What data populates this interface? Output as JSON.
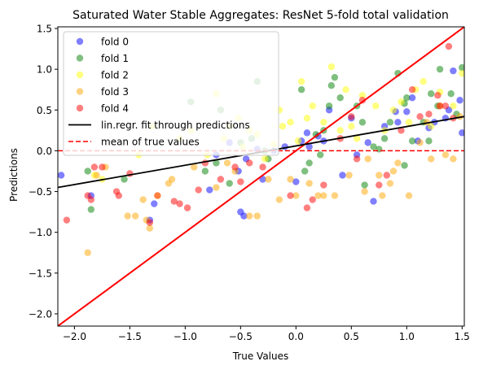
{
  "chart_data": {
    "type": "scatter",
    "title": "Saturated Water Stable Aggregates: ResNet 5-fold total validation",
    "xlabel": "True Values",
    "ylabel": "Predictions",
    "xlim": [
      -2.15,
      1.52
    ],
    "ylim": [
      -2.15,
      1.52
    ],
    "xticks": [
      -2.0,
      -1.5,
      -1.0,
      -0.5,
      0.0,
      0.5,
      1.0,
      1.5
    ],
    "yticks": [
      -2.0,
      -1.5,
      -1.0,
      -0.5,
      0.0,
      0.5,
      1.0,
      1.5
    ],
    "xtick_labels": [
      "−2.0",
      "−1.5",
      "−1.0",
      "−0.5",
      "0.0",
      "0.5",
      "1.0",
      "1.5"
    ],
    "ytick_labels": [
      "−2.0",
      "−1.5",
      "−1.0",
      "−0.5",
      "0.0",
      "0.5",
      "1.0",
      "1.5"
    ],
    "grid": false,
    "legend_position": "top-left",
    "series": [
      {
        "name": "fold 0",
        "color": "#0000ff",
        "points": [
          [
            -2.12,
            -0.3
          ],
          [
            -1.85,
            -0.55
          ],
          [
            -1.32,
            -0.85
          ],
          [
            -0.5,
            -0.75
          ],
          [
            -0.47,
            -0.8
          ],
          [
            -0.72,
            -0.05
          ],
          [
            -0.6,
            0.1
          ],
          [
            -0.52,
            -0.25
          ],
          [
            -0.45,
            -0.1
          ],
          [
            -0.35,
            0.02
          ],
          [
            -0.2,
            0.0
          ],
          [
            -0.1,
            0.05
          ],
          [
            0.0,
            -0.38
          ],
          [
            0.05,
            0.12
          ],
          [
            0.1,
            0.22
          ],
          [
            0.12,
            0.05
          ],
          [
            0.25,
            0.12
          ],
          [
            0.3,
            0.5
          ],
          [
            0.42,
            -0.3
          ],
          [
            0.55,
            -0.05
          ],
          [
            0.65,
            0.1
          ],
          [
            0.7,
            -0.62
          ],
          [
            0.8,
            0.3
          ],
          [
            0.9,
            0.48
          ],
          [
            0.92,
            0.35
          ],
          [
            1.0,
            0.48
          ],
          [
            1.05,
            0.65
          ],
          [
            1.1,
            0.12
          ],
          [
            1.2,
            0.28
          ],
          [
            1.25,
            0.35
          ],
          [
            1.35,
            0.4
          ],
          [
            1.38,
            0.5
          ],
          [
            1.42,
            0.98
          ],
          [
            1.48,
            0.62
          ],
          [
            1.5,
            0.22
          ],
          [
            -1.28,
            -0.65
          ],
          [
            -0.78,
            -0.48
          ],
          [
            -0.3,
            -0.35
          ],
          [
            0.2,
            0.18
          ],
          [
            0.5,
            0.4
          ]
        ]
      },
      {
        "name": "fold 1",
        "color": "#008000",
        "points": [
          [
            -1.88,
            -0.25
          ],
          [
            -1.85,
            -0.72
          ],
          [
            -1.55,
            -0.35
          ],
          [
            -0.95,
            0.6
          ],
          [
            -0.82,
            -0.25
          ],
          [
            -0.72,
            -0.15
          ],
          [
            -0.68,
            0.5
          ],
          [
            -0.6,
            -0.4
          ],
          [
            -0.5,
            0.1
          ],
          [
            -0.4,
            0.15
          ],
          [
            -0.35,
            0.85
          ],
          [
            -0.28,
            0.0
          ],
          [
            -0.25,
            -0.1
          ],
          [
            0.05,
            0.75
          ],
          [
            0.08,
            -0.25
          ],
          [
            0.12,
            -0.15
          ],
          [
            0.18,
            0.2
          ],
          [
            0.22,
            -0.05
          ],
          [
            0.25,
            0.25
          ],
          [
            0.3,
            0.55
          ],
          [
            0.32,
            0.8
          ],
          [
            0.35,
            0.9
          ],
          [
            0.4,
            0.65
          ],
          [
            0.55,
            0.55
          ],
          [
            0.6,
            0.35
          ],
          [
            0.7,
            0.05
          ],
          [
            0.75,
            0.02
          ],
          [
            0.8,
            0.15
          ],
          [
            0.85,
            0.35
          ],
          [
            0.92,
            0.95
          ],
          [
            0.98,
            0.58
          ],
          [
            1.0,
            0.65
          ],
          [
            1.05,
            0.12
          ],
          [
            1.15,
            0.35
          ],
          [
            1.22,
            0.7
          ],
          [
            1.28,
            0.55
          ],
          [
            1.3,
            1.0
          ],
          [
            1.4,
            0.7
          ],
          [
            1.45,
            0.45
          ],
          [
            1.5,
            1.02
          ],
          [
            0.98,
            -0.18
          ],
          [
            1.2,
            0.12
          ],
          [
            0.62,
            -0.42
          ]
        ]
      },
      {
        "name": "fold 2",
        "color": "#ffff00",
        "points": [
          [
            -1.82,
            -0.3
          ],
          [
            -1.75,
            -0.35
          ],
          [
            -1.42,
            -0.05
          ],
          [
            -1.3,
            0.3
          ],
          [
            -1.25,
            -0.55
          ],
          [
            -1.05,
            0.15
          ],
          [
            -0.95,
            0.25
          ],
          [
            -0.8,
            -0.05
          ],
          [
            -0.72,
            0.7
          ],
          [
            -0.6,
            0.3
          ],
          [
            -0.52,
            0.4
          ],
          [
            -0.48,
            0.05
          ],
          [
            -0.42,
            0.25
          ],
          [
            -0.35,
            0.2
          ],
          [
            -0.28,
            -0.1
          ],
          [
            -0.2,
            0.08
          ],
          [
            -0.15,
            0.5
          ],
          [
            -0.12,
            0.3
          ],
          [
            -0.05,
            0.35
          ],
          [
            0.02,
            0.12
          ],
          [
            0.05,
            0.85
          ],
          [
            0.1,
            0.4
          ],
          [
            0.15,
            0.55
          ],
          [
            0.25,
            0.35
          ],
          [
            0.32,
            1.03
          ],
          [
            0.4,
            0.25
          ],
          [
            0.45,
            0.75
          ],
          [
            0.55,
            0.15
          ],
          [
            0.6,
            0.68
          ],
          [
            0.72,
            0.55
          ],
          [
            0.8,
            0.25
          ],
          [
            0.88,
            0.5
          ],
          [
            0.95,
            0.6
          ],
          [
            1.02,
            0.35
          ],
          [
            1.08,
            0.75
          ],
          [
            1.15,
            0.85
          ],
          [
            1.22,
            0.3
          ],
          [
            1.3,
            0.72
          ],
          [
            1.42,
            0.55
          ],
          [
            1.5,
            0.95
          ],
          [
            -0.65,
            0.15
          ],
          [
            0.5,
            0.3
          ]
        ]
      },
      {
        "name": "fold 3",
        "color": "#ffa500",
        "points": [
          [
            -1.88,
            -1.25
          ],
          [
            -1.8,
            -0.3
          ],
          [
            -1.72,
            -0.2
          ],
          [
            -1.52,
            -0.8
          ],
          [
            -1.45,
            -0.8
          ],
          [
            -1.38,
            -0.6
          ],
          [
            -1.35,
            -0.85
          ],
          [
            -1.32,
            -0.95
          ],
          [
            -1.15,
            -0.4
          ],
          [
            -1.12,
            -0.35
          ],
          [
            -0.92,
            -0.2
          ],
          [
            -0.72,
            -0.45
          ],
          [
            -0.62,
            -0.15
          ],
          [
            -0.55,
            -0.25
          ],
          [
            -0.42,
            -0.8
          ],
          [
            -0.35,
            -0.8
          ],
          [
            -0.25,
            -0.35
          ],
          [
            -0.15,
            -0.6
          ],
          [
            -0.05,
            -0.35
          ],
          [
            0.0,
            -0.55
          ],
          [
            0.12,
            -0.4
          ],
          [
            0.2,
            -0.55
          ],
          [
            0.25,
            -0.55
          ],
          [
            0.35,
            -0.55
          ],
          [
            0.48,
            -0.3
          ],
          [
            0.62,
            -0.5
          ],
          [
            0.65,
            -0.1
          ],
          [
            0.75,
            -0.3
          ],
          [
            0.78,
            -0.55
          ],
          [
            0.88,
            -0.25
          ],
          [
            0.92,
            -0.15
          ],
          [
            1.02,
            -0.55
          ],
          [
            1.12,
            0.1
          ],
          [
            1.18,
            0.35
          ],
          [
            1.22,
            -0.1
          ],
          [
            1.3,
            0.55
          ],
          [
            1.35,
            -0.05
          ],
          [
            1.42,
            -0.1
          ],
          [
            1.48,
            0.42
          ],
          [
            0.85,
            -0.4
          ]
        ]
      },
      {
        "name": "fold 4",
        "color": "#ff0000",
        "points": [
          [
            -2.07,
            -0.85
          ],
          [
            -1.88,
            -0.55
          ],
          [
            -1.85,
            -0.6
          ],
          [
            -1.82,
            -0.2
          ],
          [
            -1.75,
            -0.2
          ],
          [
            -1.62,
            -0.5
          ],
          [
            -1.6,
            -0.55
          ],
          [
            -1.5,
            -0.28
          ],
          [
            -1.32,
            -0.88
          ],
          [
            -1.1,
            -0.62
          ],
          [
            -1.05,
            -0.65
          ],
          [
            -0.98,
            -0.7
          ],
          [
            -0.88,
            -0.48
          ],
          [
            -0.82,
            -0.15
          ],
          [
            -0.68,
            -0.35
          ],
          [
            -0.55,
            -0.2
          ],
          [
            -0.5,
            -0.38
          ],
          [
            -0.42,
            -0.15
          ],
          [
            -0.3,
            -0.2
          ],
          [
            -0.05,
            -0.55
          ],
          [
            0.1,
            -0.7
          ],
          [
            0.15,
            -0.6
          ],
          [
            0.25,
            -0.42
          ],
          [
            0.4,
            0.15
          ],
          [
            0.5,
            0.42
          ],
          [
            0.6,
            0.62
          ],
          [
            0.75,
            -0.42
          ],
          [
            0.82,
            -0.3
          ],
          [
            0.95,
            0.25
          ],
          [
            1.05,
            0.75
          ],
          [
            1.12,
            0.42
          ],
          [
            1.2,
            0.45
          ],
          [
            1.28,
            0.68
          ],
          [
            1.3,
            0.55
          ],
          [
            1.35,
            0.55
          ],
          [
            1.38,
            1.28
          ],
          [
            1.42,
            0.4
          ],
          [
            -1.25,
            -0.55
          ],
          [
            0.55,
            -0.1
          ]
        ]
      }
    ],
    "regression_line": {
      "name": "lin.regr. fit through predictions",
      "color": "#000000",
      "x": [
        -2.15,
        1.52
      ],
      "y": [
        -0.45,
        0.42
      ]
    },
    "mean_line": {
      "name": "mean of true values",
      "color": "#ff0000",
      "y": 0.0
    },
    "identity_line": {
      "color": "#ff0000",
      "x": [
        -2.15,
        1.52
      ],
      "y": [
        -2.15,
        1.52
      ]
    }
  }
}
